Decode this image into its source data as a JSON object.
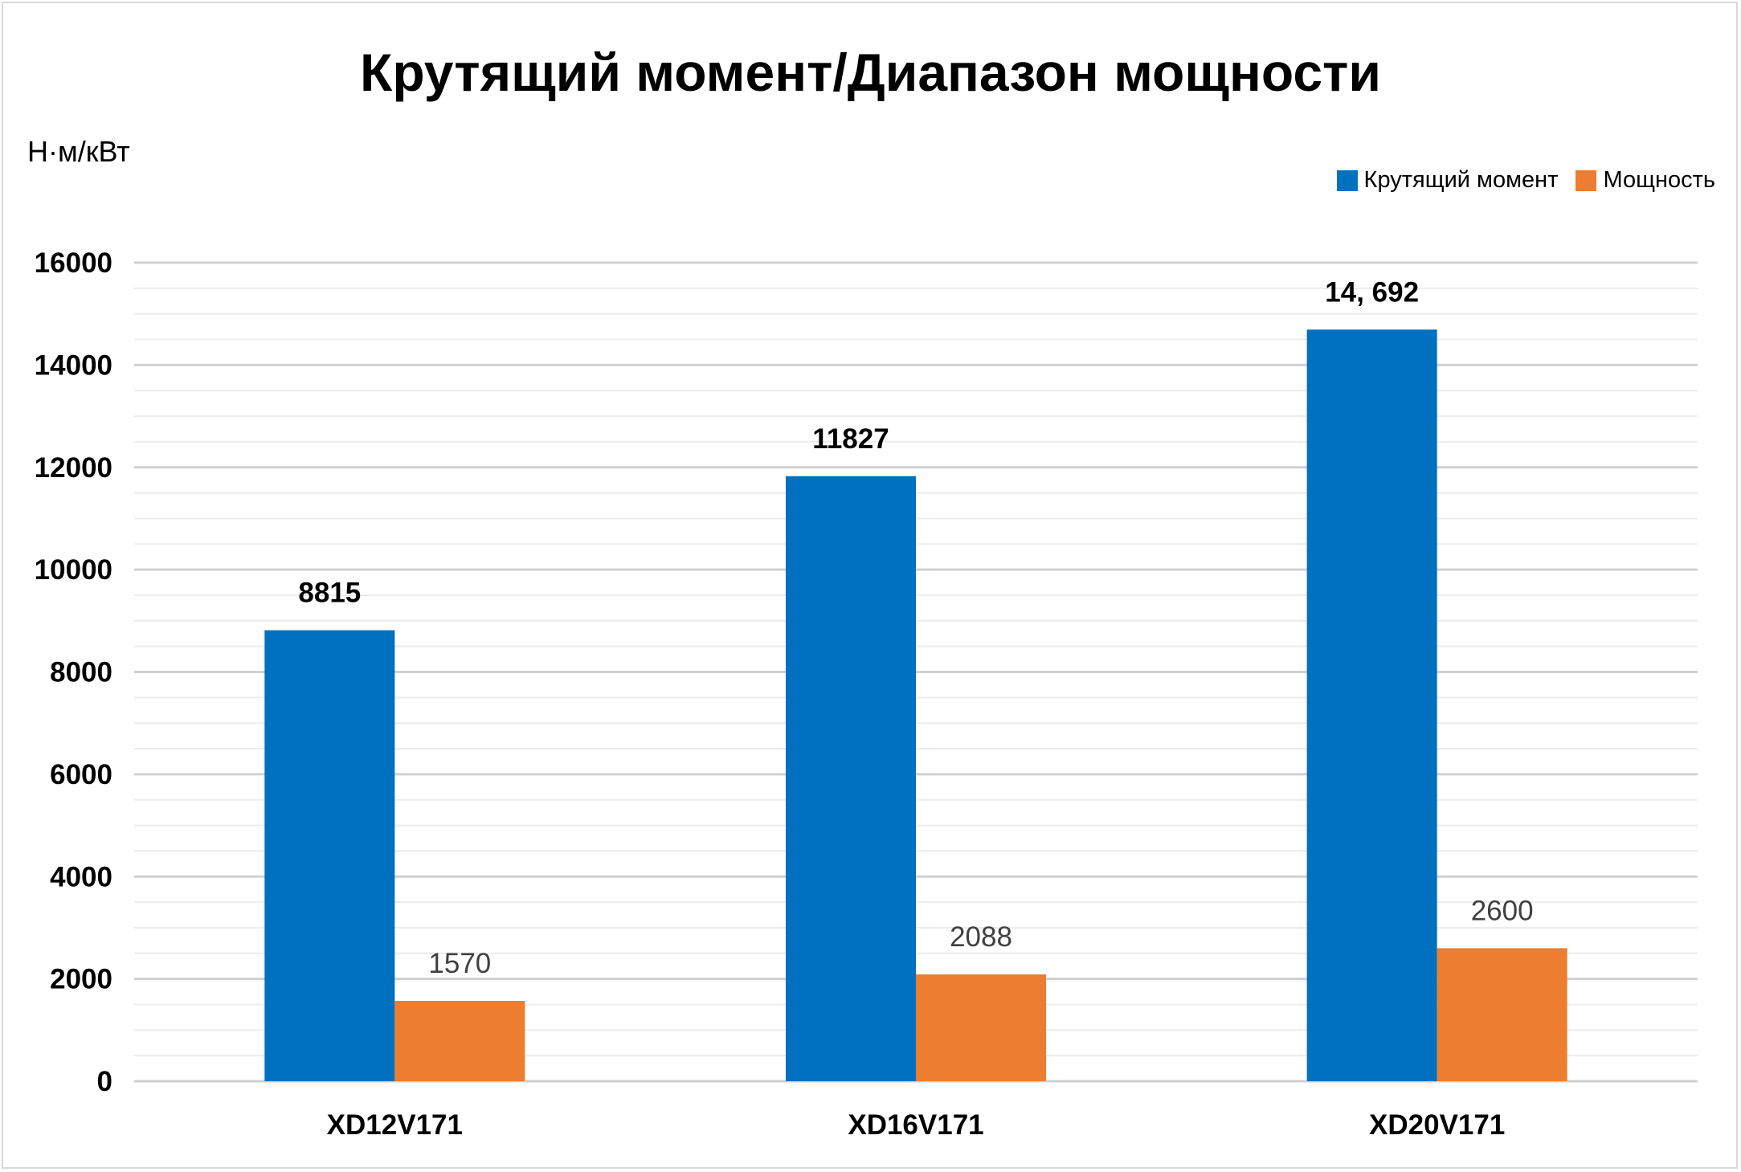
{
  "chart_data": {
    "type": "bar",
    "title": "Крутящий момент/Диапазон мощности",
    "ylabel": "Н·м/кВт",
    "xlabel": "",
    "ylim": [
      0,
      16000
    ],
    "yticks": [
      "0",
      "2000",
      "4000",
      "6000",
      "8000",
      "10000",
      "12000",
      "14000",
      "16000"
    ],
    "categories": [
      "XD12V171",
      "XD16V171",
      "XD20V171"
    ],
    "series": [
      {
        "name": "Крутящий момент",
        "color": "#0070C0",
        "values": [
          8815,
          11827,
          14692
        ],
        "labels": [
          "8815",
          "11827",
          "14, 692"
        ]
      },
      {
        "name": "Мощность",
        "color": "#ED7D31",
        "values": [
          1570,
          2088,
          2600
        ],
        "labels": [
          "1570",
          "2088",
          "2600"
        ]
      }
    ],
    "grid": true,
    "legend_position": "top-right"
  }
}
